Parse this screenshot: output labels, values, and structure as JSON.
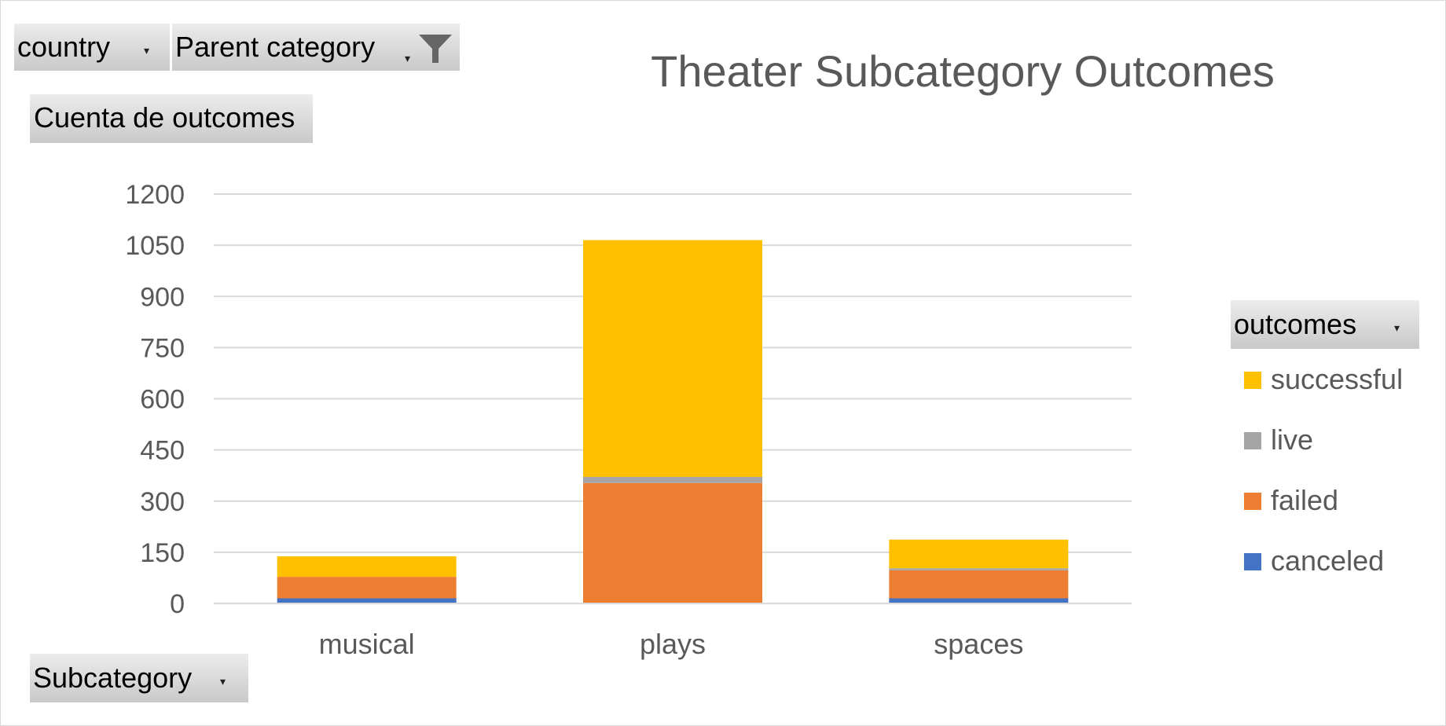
{
  "filters": {
    "country": "country",
    "parent_category": "Parent category",
    "values_field": "Cuenta de outcomes",
    "axis_field": "Subcategory",
    "legend_field": "outcomes"
  },
  "colors": {
    "successful": "#FFC000",
    "live": "#A5A5A5",
    "failed": "#ED7D31",
    "canceled": "#4472C4"
  },
  "chart_data": {
    "type": "bar",
    "stacked": true,
    "title": "Theater Subcategory Outcomes",
    "xlabel": "",
    "ylabel": "",
    "categories": [
      "musical",
      "plays",
      "spaces"
    ],
    "ylim": [
      0,
      1200
    ],
    "yticks": [
      0,
      150,
      300,
      450,
      600,
      750,
      900,
      1050,
      1200
    ],
    "grid": true,
    "legend_position": "right",
    "series": [
      {
        "name": "canceled",
        "values": [
          15,
          0,
          15
        ]
      },
      {
        "name": "failed",
        "values": [
          63,
          353,
          82
        ]
      },
      {
        "name": "live",
        "values": [
          0,
          18,
          6
        ]
      },
      {
        "name": "successful",
        "values": [
          60,
          694,
          84
        ]
      }
    ]
  }
}
